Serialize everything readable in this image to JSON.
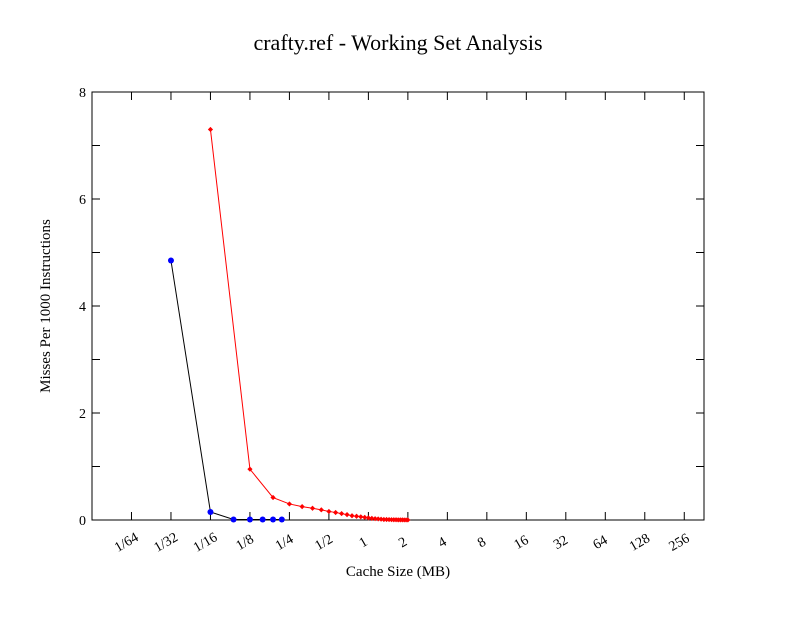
{
  "chart_data": {
    "type": "line",
    "title": "crafty.ref - Working Set Analysis",
    "xlabel": "Cache Size (MB)",
    "ylabel": "Misses Per 1000 Instructions",
    "x_scale": "log2",
    "x_ticks": [
      "1/64",
      "1/32",
      "1/16",
      "1/8",
      "1/4",
      "1/2",
      "1",
      "2",
      "4",
      "8",
      "16",
      "32",
      "64",
      "128",
      "256"
    ],
    "x_tick_values": [
      0.015625,
      0.03125,
      0.0625,
      0.125,
      0.25,
      0.5,
      1,
      2,
      4,
      8,
      16,
      32,
      64,
      128,
      256
    ],
    "xlim": [
      0.0078125,
      362
    ],
    "ylim": [
      0,
      8
    ],
    "y_ticks": [
      0,
      2,
      4,
      6,
      8
    ],
    "y_tick_labels": [
      "0",
      "2",
      "4",
      "6",
      "8"
    ],
    "grid": false,
    "legend": "none",
    "series": [
      {
        "line_color": "#000000",
        "marker_color": "#0000ff",
        "marker": "circle",
        "points": [
          [
            0.03125,
            4.85
          ],
          [
            0.0625,
            0.15
          ],
          [
            0.09375,
            0.01
          ],
          [
            0.125,
            0.01
          ],
          [
            0.15625,
            0.01
          ],
          [
            0.1875,
            0.01
          ],
          [
            0.21875,
            0.01
          ]
        ]
      },
      {
        "line_color": "#ff0000",
        "marker_color": "#ff0000",
        "marker": "diamond",
        "points": [
          [
            0.0625,
            7.3
          ],
          [
            0.125,
            0.95
          ],
          [
            0.1875,
            0.42
          ],
          [
            0.25,
            0.3
          ],
          [
            0.3125,
            0.25
          ],
          [
            0.375,
            0.22
          ],
          [
            0.4375,
            0.19
          ],
          [
            0.5,
            0.16
          ],
          [
            0.5625,
            0.14
          ],
          [
            0.625,
            0.12
          ],
          [
            0.6875,
            0.1
          ],
          [
            0.75,
            0.08
          ],
          [
            0.8125,
            0.07
          ],
          [
            0.875,
            0.06
          ],
          [
            0.9375,
            0.05
          ],
          [
            1,
            0.04
          ],
          [
            1.0625,
            0.03
          ],
          [
            1.125,
            0.025
          ],
          [
            1.1875,
            0.02
          ],
          [
            1.25,
            0.015
          ],
          [
            1.3125,
            0.01
          ],
          [
            1.375,
            0.01
          ],
          [
            1.4375,
            0.008
          ],
          [
            1.5,
            0.006
          ],
          [
            1.5625,
            0.005
          ],
          [
            1.625,
            0.004
          ],
          [
            1.6875,
            0.003
          ],
          [
            1.75,
            0.002
          ],
          [
            1.8125,
            0.002
          ],
          [
            1.875,
            0.001
          ],
          [
            1.9375,
            0.001
          ],
          [
            2,
            0.001
          ]
        ]
      }
    ]
  }
}
